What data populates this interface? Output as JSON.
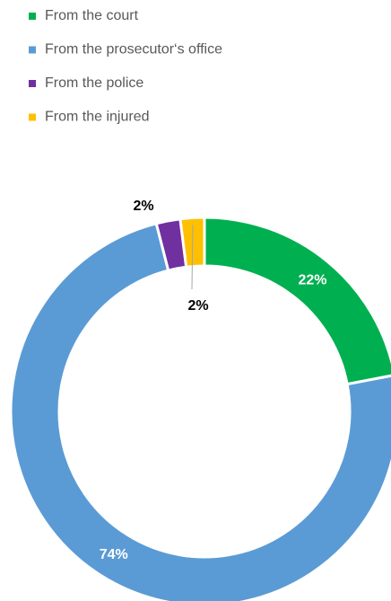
{
  "chart_data": {
    "type": "donut",
    "categories": [
      "From the court",
      "From the prosecutor‘s office",
      "From the police",
      "From the injured"
    ],
    "values": [
      22,
      74,
      2,
      2
    ],
    "value_labels": [
      "22%",
      "74%",
      "2%",
      "2%"
    ],
    "colors": [
      "#00b050",
      "#5b9bd5",
      "#7030a0",
      "#ffc000"
    ],
    "legend": "top-left"
  }
}
